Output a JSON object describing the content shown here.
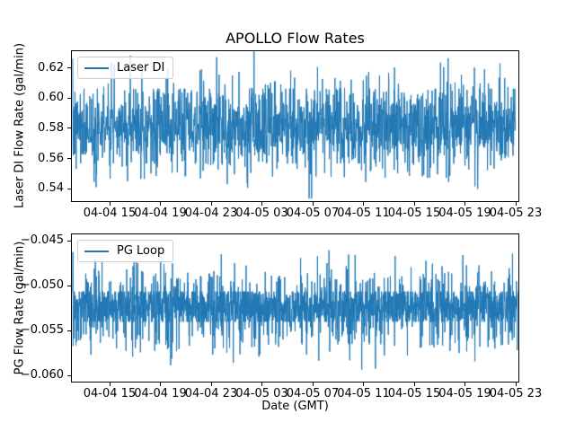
{
  "figure": {
    "title": "APOLLO Flow Rates",
    "xlabel": "Date (GMT)",
    "background_color": "#ffffff",
    "text_color": "#000000",
    "spine_color": "#000000",
    "accent_color": "#1f77b4"
  },
  "chart_data": [
    {
      "type": "line",
      "title": "APOLLO Flow Rates",
      "ylabel": "Laser DI Flow Rate (gal/min)",
      "xlabel": "",
      "legend": {
        "label": "Laser DI",
        "position": "upper left"
      },
      "line_color": "#1f77b4",
      "grid": false,
      "ylim": [
        0.5313,
        0.6316
      ],
      "yticks": [
        0.62,
        0.6,
        0.58,
        0.56,
        0.54
      ],
      "ytick_labels": [
        "0.62",
        "0.60",
        "0.58",
        "0.56",
        "0.54"
      ],
      "x_ticklabels": [
        "04-04 15",
        "04-04 19",
        "04-04 23",
        "04-05 03",
        "04-05 07",
        "04-05 11",
        "04-05 15",
        "04-05 19",
        "04-05 23"
      ],
      "signal": {
        "description": "high-frequency noisy flow signal, dense band ~0.56-0.61 with spikes to ~0.63 and dips to ~0.53",
        "points": 1800,
        "seed": 7,
        "baseline": 0.581,
        "noise_sigma": 0.012,
        "core_band": [
          0.5565,
          0.6065
        ],
        "spike_up_prob": 0.055,
        "spike_up_base": 0.601,
        "spike_up_scale": 0.011,
        "max": 0.6315,
        "spike_down_prob": 0.045,
        "spike_down_base": 0.5565,
        "spike_down_scale": 0.0075,
        "min": 0.533,
        "x_span": [
          0.002,
          0.993
        ]
      }
    },
    {
      "type": "line",
      "title": "",
      "ylabel": "PG Flow Rate (gal/min)",
      "xlabel": "Date (GMT)",
      "legend": {
        "label": "PG Loop",
        "position": "upper left"
      },
      "line_color": "#1f77b4",
      "grid": false,
      "ylim": [
        -0.0608,
        -0.0442
      ],
      "yticks": [
        -0.045,
        -0.05,
        -0.055,
        -0.06
      ],
      "ytick_labels": [
        "−0.045",
        "−0.050",
        "−0.055",
        "−0.060"
      ],
      "x_ticklabels": [
        "04-04 15",
        "04-04 19",
        "04-04 23",
        "04-05 03",
        "04-05 07",
        "04-05 11",
        "04-05 15",
        "04-05 19",
        "04-05 23"
      ],
      "signal": {
        "description": "high-frequency noisy flow signal, solid band ~-0.054 to -0.051 with spikes to ~-0.045 and dips to ~-0.060",
        "points": 2400,
        "seed": 13,
        "baseline": -0.0523,
        "noise_sigma": 0.00125,
        "core_band": [
          -0.05405,
          -0.05065
        ],
        "spike_up_prob": 0.085,
        "spike_up_base": -0.0503,
        "spike_up_scale": 0.0016,
        "max": -0.0449,
        "spike_down_prob": 0.085,
        "spike_down_base": -0.0545,
        "spike_down_scale": 0.0017,
        "min": -0.0601,
        "x_span": [
          0.002,
          0.998
        ]
      }
    }
  ]
}
